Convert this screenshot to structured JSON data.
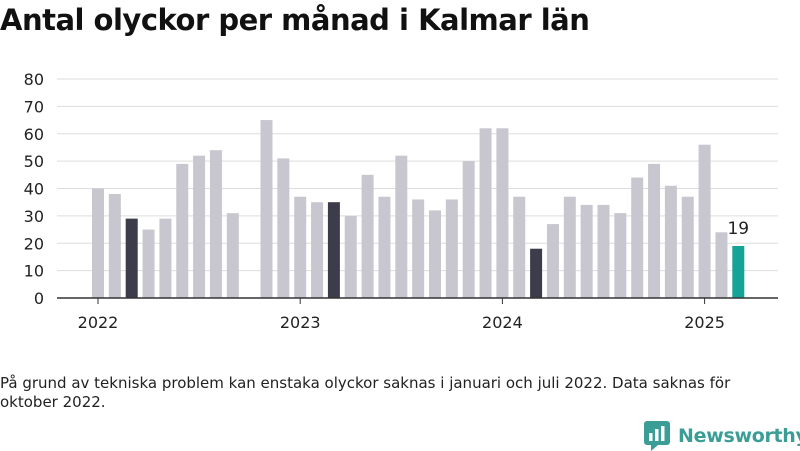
{
  "title": "Antal olyckor per månad i Kalmar län",
  "note": "På grund av tekniska problem kan enstaka olyckor saknas i januari och juli 2022. Data saknas för oktober 2022.",
  "brand": {
    "name": "Newsworthy",
    "icon": "newsworthy-logo-icon",
    "color": "#3a9e96"
  },
  "colors": {
    "bar": "#c8c7cf",
    "highlight": "#3d3c4a",
    "latest": "#16a296",
    "grid": "#dddddd",
    "axis": "#333333"
  },
  "chart_data": {
    "type": "bar",
    "title": "Antal olyckor per månad i Kalmar län",
    "xlabel": "",
    "ylabel": "",
    "ylim": [
      0,
      80
    ],
    "yticks": [
      "0",
      "10",
      "20",
      "30",
      "40",
      "50",
      "60",
      "70",
      "80"
    ],
    "xticks": [
      "2022",
      "2023",
      "2024",
      "2025"
    ],
    "grid": true,
    "categories": [
      "2022-01",
      "2022-02",
      "2022-03",
      "2022-04",
      "2022-05",
      "2022-06",
      "2022-07",
      "2022-08",
      "2022-09",
      "2022-10",
      "2022-11",
      "2022-12",
      "2023-01",
      "2023-02",
      "2023-03",
      "2023-04",
      "2023-05",
      "2023-06",
      "2023-07",
      "2023-08",
      "2023-09",
      "2023-10",
      "2023-11",
      "2023-12",
      "2024-01",
      "2024-02",
      "2024-03",
      "2024-04",
      "2024-05",
      "2024-06",
      "2024-07",
      "2024-08",
      "2024-09",
      "2024-10",
      "2024-11",
      "2024-12",
      "2025-01",
      "2025-02",
      "2025-03"
    ],
    "values": [
      40,
      38,
      29,
      25,
      29,
      49,
      52,
      54,
      31,
      null,
      65,
      51,
      37,
      35,
      35,
      30,
      45,
      37,
      52,
      36,
      32,
      36,
      50,
      62,
      62,
      37,
      18,
      27,
      37,
      34,
      34,
      31,
      44,
      49,
      41,
      37,
      56,
      24,
      19
    ],
    "highlight": [
      "2022-03",
      "2023-03",
      "2024-03"
    ],
    "latest": "2025-03",
    "annotations": [
      {
        "category": "2025-03",
        "text": "19"
      }
    ]
  }
}
